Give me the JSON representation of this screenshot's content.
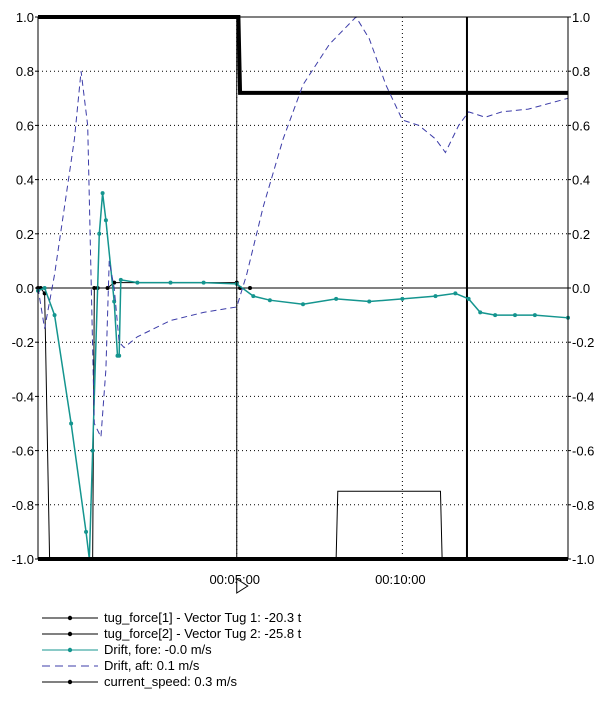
{
  "chart_data": {
    "type": "line",
    "title": "",
    "xlabel": "",
    "ylabel": "",
    "ylim": [
      -1.0,
      1.0
    ],
    "xlim": [
      0,
      16
    ],
    "y_ticks": [
      "1.0",
      "0.8",
      "0.6",
      "0.4",
      "0.2",
      "0.0",
      "-0.2",
      "-0.4",
      "-0.6",
      "-0.8",
      "-1.0"
    ],
    "y_ticks_right": [
      "1.0",
      "0.8",
      "0.6",
      "0.4",
      "0.2",
      "0.0",
      "-0.2",
      "-0.4",
      "-0.6",
      "-0.8",
      "-1.0"
    ],
    "x_ticks": [
      {
        "x": 6.0,
        "label": "00:05:00"
      },
      {
        "x": 11.0,
        "label": "00:10:00"
      }
    ],
    "grid": "dotted",
    "cursor_x": 6.0,
    "legend_position": "bottom",
    "series": [
      {
        "name": "tug_force[1] - Vector Tug 1: -20.3 t",
        "color": "#000000",
        "style": "solid-marker",
        "points": [
          [
            0,
            0
          ],
          [
            0.08,
            0.0
          ],
          [
            0.2,
            -0.02
          ],
          [
            0.35,
            -1.0
          ],
          [
            1.0,
            -1.0
          ],
          [
            1.65,
            -1.0
          ],
          [
            1.7,
            0.0
          ],
          [
            1.8,
            0.0
          ],
          [
            2.1,
            0.0
          ],
          [
            2.3,
            0.02
          ],
          [
            6.0,
            0.02
          ],
          [
            6.1,
            0.0
          ],
          [
            6.4,
            0.0
          ]
        ]
      },
      {
        "name": "tug_force[2] - Vector Tug 2: -25.8 t",
        "color": "#000000",
        "style": "solid-marker",
        "points": [
          [
            0,
            1.0
          ],
          [
            6.05,
            1.0
          ],
          [
            6.1,
            0.72
          ],
          [
            16,
            0.72
          ]
        ]
      },
      {
        "name": "Drift, fore: -0.0 m/s",
        "color": "#14958f",
        "style": "solid-marker",
        "points": [
          [
            0,
            -0.01
          ],
          [
            0.2,
            0.0
          ],
          [
            0.5,
            -0.1
          ],
          [
            1.0,
            -0.5
          ],
          [
            1.45,
            -0.9
          ],
          [
            1.55,
            -1.0
          ],
          [
            1.65,
            -0.6
          ],
          [
            1.85,
            0.2
          ],
          [
            1.95,
            0.35
          ],
          [
            2.05,
            0.25
          ],
          [
            2.3,
            -0.05
          ],
          [
            2.4,
            -0.25
          ],
          [
            2.45,
            -0.25
          ],
          [
            2.5,
            0.03
          ],
          [
            3.0,
            0.02
          ],
          [
            4.0,
            0.02
          ],
          [
            5.0,
            0.02
          ],
          [
            6.0,
            0.015
          ],
          [
            6.5,
            -0.03
          ],
          [
            7.0,
            -0.045
          ],
          [
            8.0,
            -0.06
          ],
          [
            9.0,
            -0.04
          ],
          [
            10.0,
            -0.05
          ],
          [
            11.0,
            -0.04
          ],
          [
            12.0,
            -0.03
          ],
          [
            12.6,
            -0.02
          ],
          [
            13.0,
            -0.04
          ],
          [
            13.35,
            -0.09
          ],
          [
            13.8,
            -0.1
          ],
          [
            14.4,
            -0.1
          ],
          [
            15.0,
            -0.1
          ],
          [
            16,
            -0.11
          ]
        ]
      },
      {
        "name": "Drift, aft: 0.1 m/s",
        "color": "#3c3ca8",
        "style": "dashed",
        "points": [
          [
            0,
            0
          ],
          [
            0.2,
            -0.15
          ],
          [
            0.5,
            0.05
          ],
          [
            0.8,
            0.3
          ],
          [
            1.1,
            0.55
          ],
          [
            1.3,
            0.8
          ],
          [
            1.5,
            0.6
          ],
          [
            1.7,
            -0.5
          ],
          [
            1.9,
            -0.55
          ],
          [
            2.05,
            -0.3
          ],
          [
            2.15,
            0.1
          ],
          [
            2.3,
            0.0
          ],
          [
            2.45,
            -0.2
          ],
          [
            2.6,
            -0.22
          ],
          [
            3.0,
            -0.18
          ],
          [
            4.0,
            -0.12
          ],
          [
            5.0,
            -0.09
          ],
          [
            6.0,
            -0.07
          ],
          [
            6.3,
            0.05
          ],
          [
            6.8,
            0.3
          ],
          [
            7.4,
            0.55
          ],
          [
            8.0,
            0.75
          ],
          [
            8.8,
            0.9
          ],
          [
            9.6,
            1.0
          ],
          [
            10.0,
            0.92
          ],
          [
            10.5,
            0.75
          ],
          [
            11.0,
            0.62
          ],
          [
            11.5,
            0.6
          ],
          [
            12.0,
            0.55
          ],
          [
            12.3,
            0.5
          ],
          [
            12.7,
            0.6
          ],
          [
            13.0,
            0.65
          ],
          [
            13.5,
            0.63
          ],
          [
            14.0,
            0.65
          ],
          [
            14.8,
            0.66
          ],
          [
            16,
            0.7
          ]
        ]
      },
      {
        "name": "current_speed: 0.3 m/s",
        "color": "#000000",
        "style": "solid-marker",
        "points": [
          [
            0,
            -1.0
          ],
          [
            13.05,
            -1.0
          ],
          [
            16,
            -1.0
          ]
        ]
      }
    ]
  },
  "secondary_lines": {
    "box_series": [
      [
        9.0,
        -1.0
      ],
      [
        9.05,
        -0.75
      ],
      [
        12.15,
        -0.75
      ],
      [
        12.2,
        -1.0
      ]
    ],
    "vertical_bar_x": 12.95
  }
}
